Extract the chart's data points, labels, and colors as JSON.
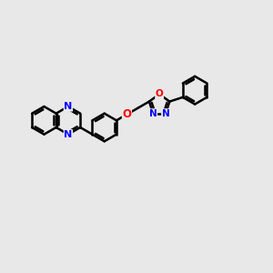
{
  "bg_color": "#e8e8e8",
  "bond_color": "#000000",
  "N_color": "#0000ff",
  "O_color": "#ff0000",
  "bond_width": 1.8,
  "dbo": 0.08,
  "figsize": [
    3.0,
    3.0
  ],
  "dpi": 100,
  "r6": 0.55,
  "r5": 0.38,
  "xlim": [
    0,
    10
  ],
  "ylim": [
    1,
    8
  ]
}
